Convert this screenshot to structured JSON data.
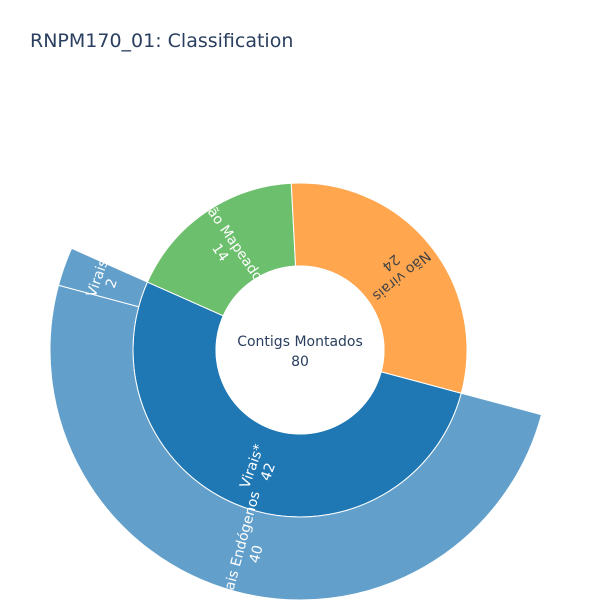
{
  "title": "RNPM170_01: Classification",
  "chart_data": {
    "type": "sunburst",
    "title": "RNPM170_01: Classification",
    "root": {
      "label": "Contigs Montados",
      "value": 80
    },
    "children": [
      {
        "label": "Virais*",
        "value": 42,
        "color": "#1f77b4",
        "text_color": "#ffffff",
        "children": [
          {
            "label": "Virais Endógenos",
            "value": 40,
            "color": "#62a0cb",
            "text_color": "#ffffff"
          },
          {
            "label": "Virais",
            "value": 2,
            "color": "#62a0cb",
            "text_color": "#ffffff"
          }
        ]
      },
      {
        "label": "Não Mapeados",
        "value": 14,
        "color": "#6cbf6c",
        "text_color": "#ffffff",
        "children": []
      },
      {
        "label": "Não virais",
        "value": 24,
        "color": "#ffa64f",
        "text_color": "#444444",
        "children": []
      }
    ]
  }
}
